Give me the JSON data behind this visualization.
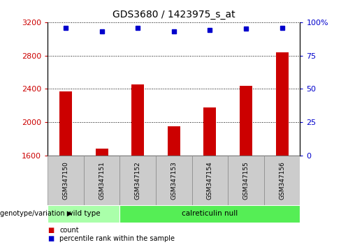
{
  "title": "GDS3680 / 1423975_s_at",
  "samples": [
    "GSM347150",
    "GSM347151",
    "GSM347152",
    "GSM347153",
    "GSM347154",
    "GSM347155",
    "GSM347156"
  ],
  "counts": [
    2370,
    1680,
    2450,
    1950,
    2180,
    2440,
    2840
  ],
  "percentiles": [
    96,
    93,
    96,
    93,
    94,
    95,
    96
  ],
  "ylim_left": [
    1600,
    3200
  ],
  "ylim_right": [
    0,
    100
  ],
  "yticks_left": [
    1600,
    2000,
    2400,
    2800,
    3200
  ],
  "yticks_right": [
    0,
    25,
    50,
    75,
    100
  ],
  "ytick_labels_right": [
    "0",
    "25",
    "50",
    "75",
    "100%"
  ],
  "bar_color": "#cc0000",
  "dot_color": "#0000cc",
  "grid_color": "#000000",
  "groups": [
    {
      "label": "wild type",
      "start": 0,
      "end": 2,
      "color": "#aaffaa"
    },
    {
      "label": "calreticulin null",
      "start": 2,
      "end": 7,
      "color": "#55ee55"
    }
  ],
  "xlabel_group": "genotype/variation",
  "legend_count_label": "count",
  "legend_percentile_label": "percentile rank within the sample",
  "background_color": "#ffffff",
  "plot_bg_color": "#ffffff",
  "bar_width": 0.35,
  "sample_box_color": "#cccccc",
  "sample_box_edge": "#888888"
}
